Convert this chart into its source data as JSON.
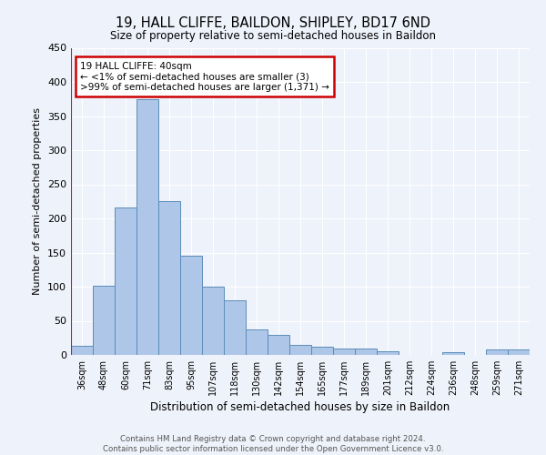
{
  "title1": "19, HALL CLIFFE, BAILDON, SHIPLEY, BD17 6ND",
  "title2": "Size of property relative to semi-detached houses in Baildon",
  "xlabel": "Distribution of semi-detached houses by size in Baildon",
  "ylabel": "Number of semi-detached properties",
  "footer1": "Contains HM Land Registry data © Crown copyright and database right 2024.",
  "footer2": "Contains public sector information licensed under the Open Government Licence v3.0.",
  "annotation_title": "19 HALL CLIFFE: 40sqm",
  "annotation_line1": "← <1% of semi-detached houses are smaller (3)",
  "annotation_line2": ">99% of semi-detached houses are larger (1,371) →",
  "categories": [
    "36sqm",
    "48sqm",
    "60sqm",
    "71sqm",
    "83sqm",
    "95sqm",
    "107sqm",
    "118sqm",
    "130sqm",
    "142sqm",
    "154sqm",
    "165sqm",
    "177sqm",
    "189sqm",
    "201sqm",
    "212sqm",
    "224sqm",
    "236sqm",
    "248sqm",
    "259sqm",
    "271sqm"
  ],
  "values": [
    13,
    101,
    216,
    375,
    225,
    145,
    100,
    80,
    38,
    29,
    15,
    12,
    10,
    10,
    6,
    0,
    0,
    4,
    0,
    8,
    8
  ],
  "bar_color": "#aec6e8",
  "bar_edge_color": "#5b8db8",
  "highlight_color": "#ff0000",
  "ylim": [
    0,
    450
  ],
  "yticks": [
    0,
    50,
    100,
    150,
    200,
    250,
    300,
    350,
    400,
    450
  ],
  "background_color": "#eef2fa",
  "grid_color": "#ffffff",
  "annotation_box_color": "#ffffff",
  "annotation_box_edge": "#cc0000"
}
